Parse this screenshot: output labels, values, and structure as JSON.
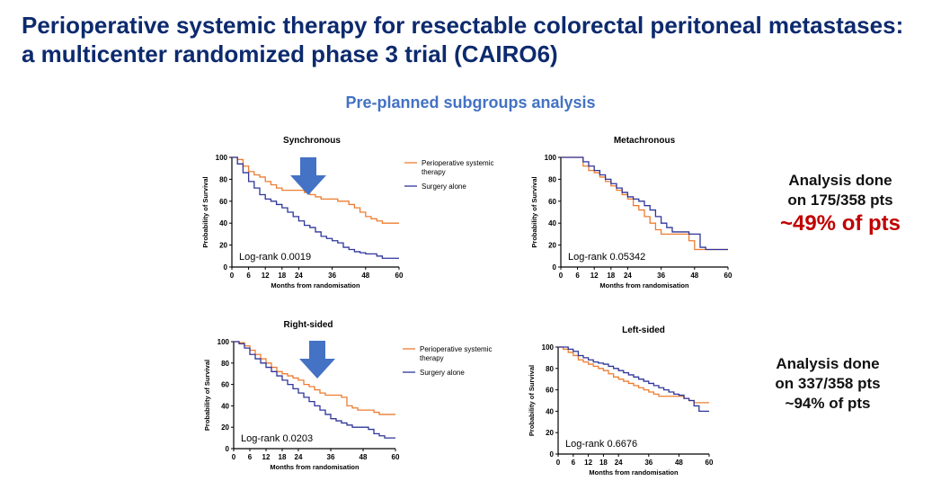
{
  "title": "Perioperative systemic therapy for resectable colorectal peritoneal metastases: a multicenter randomized phase 3 trial (CAIRO6)",
  "subtitle": "Pre-planned subgroups analysis",
  "colors": {
    "perioperative": "#ED7D31",
    "surgery": "#2F3699",
    "arrow": "#4472C4",
    "highlight": "#C00000"
  },
  "legend": {
    "perioperative": "Perioperative systemic therapy",
    "surgery": "Surgery alone"
  },
  "notes": [
    {
      "line1": "Analysis done",
      "line2": "on 175/358 pts",
      "line3": "~49% of pts"
    },
    {
      "line1": "Analysis done",
      "line2": "on 337/358 pts",
      "line3": "~94% of pts"
    }
  ],
  "chart_data": [
    {
      "type": "line",
      "title": "Synchronous",
      "xlabel": "Months from randomisation",
      "ylabel": "Probability of Survival",
      "xlim": [
        0,
        60
      ],
      "ylim": [
        0,
        100
      ],
      "xticks": [
        0,
        6,
        12,
        18,
        24,
        36,
        48,
        60
      ],
      "yticks": [
        0,
        20,
        40,
        60,
        80,
        100
      ],
      "annotation": "Log-rank 0.0019",
      "legend": true,
      "arrow": true,
      "series": [
        {
          "name": "Perioperative systemic therapy",
          "color": "#ED7D31",
          "x": [
            0,
            2,
            4,
            6,
            8,
            10,
            12,
            14,
            16,
            18,
            20,
            22,
            24,
            26,
            28,
            30,
            32,
            34,
            36,
            38,
            40,
            42,
            44,
            46,
            48,
            50,
            52,
            54,
            56,
            58,
            60
          ],
          "y": [
            100,
            98,
            92,
            87,
            84,
            82,
            78,
            75,
            72,
            70,
            70,
            70,
            70,
            68,
            66,
            64,
            62,
            62,
            62,
            60,
            60,
            57,
            54,
            50,
            46,
            44,
            42,
            40,
            40,
            40,
            40
          ]
        },
        {
          "name": "Surgery alone",
          "color": "#2F3699",
          "x": [
            0,
            2,
            4,
            6,
            8,
            10,
            12,
            14,
            16,
            18,
            20,
            22,
            24,
            26,
            28,
            30,
            32,
            34,
            36,
            38,
            40,
            42,
            44,
            46,
            48,
            50,
            52,
            54,
            56,
            58,
            60
          ],
          "y": [
            100,
            94,
            86,
            78,
            72,
            66,
            62,
            60,
            57,
            54,
            50,
            46,
            42,
            38,
            36,
            32,
            28,
            26,
            24,
            22,
            18,
            16,
            14,
            13,
            12,
            12,
            10,
            8,
            8,
            8,
            8
          ]
        }
      ]
    },
    {
      "type": "line",
      "title": "Metachronous",
      "xlabel": "Months from randomisation",
      "ylabel": "Probability of Survival",
      "xlim": [
        0,
        60
      ],
      "ylim": [
        0,
        100
      ],
      "xticks": [
        0,
        6,
        12,
        18,
        24,
        36,
        48,
        60
      ],
      "yticks": [
        0,
        20,
        40,
        60,
        80,
        100
      ],
      "annotation": "Log-rank 0.05342",
      "legend": false,
      "arrow": false,
      "series": [
        {
          "name": "Perioperative systemic therapy",
          "color": "#ED7D31",
          "x": [
            0,
            6,
            8,
            10,
            12,
            14,
            16,
            18,
            20,
            22,
            24,
            26,
            28,
            30,
            32,
            34,
            36,
            38,
            40,
            42,
            44,
            46,
            48,
            50,
            52,
            54,
            56,
            58,
            60
          ],
          "y": [
            100,
            100,
            92,
            88,
            86,
            82,
            78,
            74,
            70,
            66,
            62,
            56,
            52,
            46,
            40,
            34,
            30,
            30,
            30,
            30,
            30,
            24,
            16,
            16,
            16,
            16,
            16,
            16,
            16
          ]
        },
        {
          "name": "Surgery alone",
          "color": "#2F3699",
          "x": [
            0,
            6,
            8,
            10,
            12,
            14,
            16,
            18,
            20,
            22,
            24,
            26,
            28,
            30,
            32,
            34,
            36,
            38,
            40,
            42,
            44,
            46,
            48,
            50,
            52,
            54,
            56,
            58,
            60
          ],
          "y": [
            100,
            100,
            96,
            92,
            88,
            84,
            80,
            76,
            72,
            68,
            64,
            62,
            60,
            56,
            52,
            46,
            40,
            36,
            32,
            32,
            32,
            30,
            30,
            18,
            16,
            16,
            16,
            16,
            16
          ]
        }
      ]
    },
    {
      "type": "line",
      "title": "Right-sided",
      "xlabel": "Months from randomisation",
      "ylabel": "Probability of Survival",
      "xlim": [
        0,
        60
      ],
      "ylim": [
        0,
        100
      ],
      "xticks": [
        0,
        6,
        12,
        18,
        24,
        36,
        48,
        60
      ],
      "yticks": [
        0,
        20,
        40,
        60,
        80,
        100
      ],
      "annotation": "Log-rank 0.0203",
      "legend": true,
      "arrow": true,
      "series": [
        {
          "name": "Perioperative systemic therapy",
          "color": "#ED7D31",
          "x": [
            0,
            2,
            4,
            6,
            8,
            10,
            12,
            14,
            16,
            18,
            20,
            22,
            24,
            26,
            28,
            30,
            32,
            34,
            36,
            38,
            40,
            42,
            44,
            46,
            48,
            50,
            52,
            54,
            56,
            58,
            60
          ],
          "y": [
            100,
            99,
            96,
            92,
            88,
            84,
            80,
            76,
            72,
            70,
            68,
            66,
            64,
            60,
            58,
            55,
            52,
            50,
            50,
            50,
            48,
            40,
            38,
            36,
            36,
            36,
            34,
            32,
            32,
            32,
            32
          ]
        },
        {
          "name": "Surgery alone",
          "color": "#2F3699",
          "x": [
            0,
            2,
            4,
            6,
            8,
            10,
            12,
            14,
            16,
            18,
            20,
            22,
            24,
            26,
            28,
            30,
            32,
            34,
            36,
            38,
            40,
            42,
            44,
            46,
            48,
            50,
            52,
            54,
            56,
            58,
            60
          ],
          "y": [
            100,
            98,
            94,
            88,
            84,
            80,
            76,
            72,
            68,
            64,
            60,
            56,
            52,
            48,
            44,
            40,
            36,
            32,
            28,
            26,
            24,
            22,
            20,
            20,
            20,
            18,
            14,
            12,
            10,
            10,
            10
          ]
        }
      ]
    },
    {
      "type": "line",
      "title": "Left-sided",
      "xlabel": "Months from randomisation",
      "ylabel": "Probability of Survival",
      "xlim": [
        0,
        60
      ],
      "ylim": [
        0,
        100
      ],
      "xticks": [
        0,
        6,
        12,
        18,
        24,
        36,
        48,
        60
      ],
      "yticks": [
        0,
        20,
        40,
        60,
        80,
        100
      ],
      "annotation": "Log-rank 0.6676",
      "legend": false,
      "arrow": false,
      "series": [
        {
          "name": "Perioperative systemic therapy",
          "color": "#ED7D31",
          "x": [
            0,
            2,
            4,
            6,
            8,
            10,
            12,
            14,
            16,
            18,
            20,
            22,
            24,
            26,
            28,
            30,
            32,
            34,
            36,
            38,
            40,
            42,
            44,
            46,
            48,
            50,
            52,
            54,
            56,
            58,
            60
          ],
          "y": [
            100,
            98,
            95,
            92,
            88,
            86,
            84,
            82,
            80,
            78,
            75,
            72,
            70,
            68,
            66,
            64,
            62,
            60,
            58,
            56,
            54,
            54,
            54,
            54,
            54,
            52,
            50,
            48,
            48,
            48,
            48
          ]
        },
        {
          "name": "Surgery alone",
          "color": "#2F3699",
          "x": [
            0,
            2,
            4,
            6,
            8,
            10,
            12,
            14,
            16,
            18,
            20,
            22,
            24,
            26,
            28,
            30,
            32,
            34,
            36,
            38,
            40,
            42,
            44,
            46,
            48,
            50,
            52,
            54,
            56,
            58,
            60
          ],
          "y": [
            100,
            100,
            98,
            96,
            92,
            90,
            88,
            86,
            85,
            84,
            82,
            80,
            78,
            76,
            74,
            72,
            70,
            68,
            66,
            64,
            62,
            60,
            58,
            56,
            55,
            52,
            50,
            45,
            40,
            40,
            40
          ]
        }
      ]
    }
  ]
}
